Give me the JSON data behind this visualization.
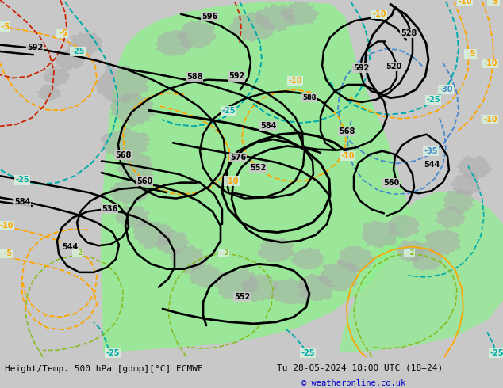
{
  "title_left": "Height/Temp. 500 hPa [gdmp][°C] ECMWF",
  "title_right": "Tu 28-05-2024 18:00 UTC (18+24)",
  "copyright": "© weatheronline.co.uk",
  "bg_color": "#c8c8c8",
  "green_fill": "#90ee90",
  "label_color_orange": "#ffa500",
  "figsize": [
    6.34,
    4.9
  ],
  "dpi": 100
}
